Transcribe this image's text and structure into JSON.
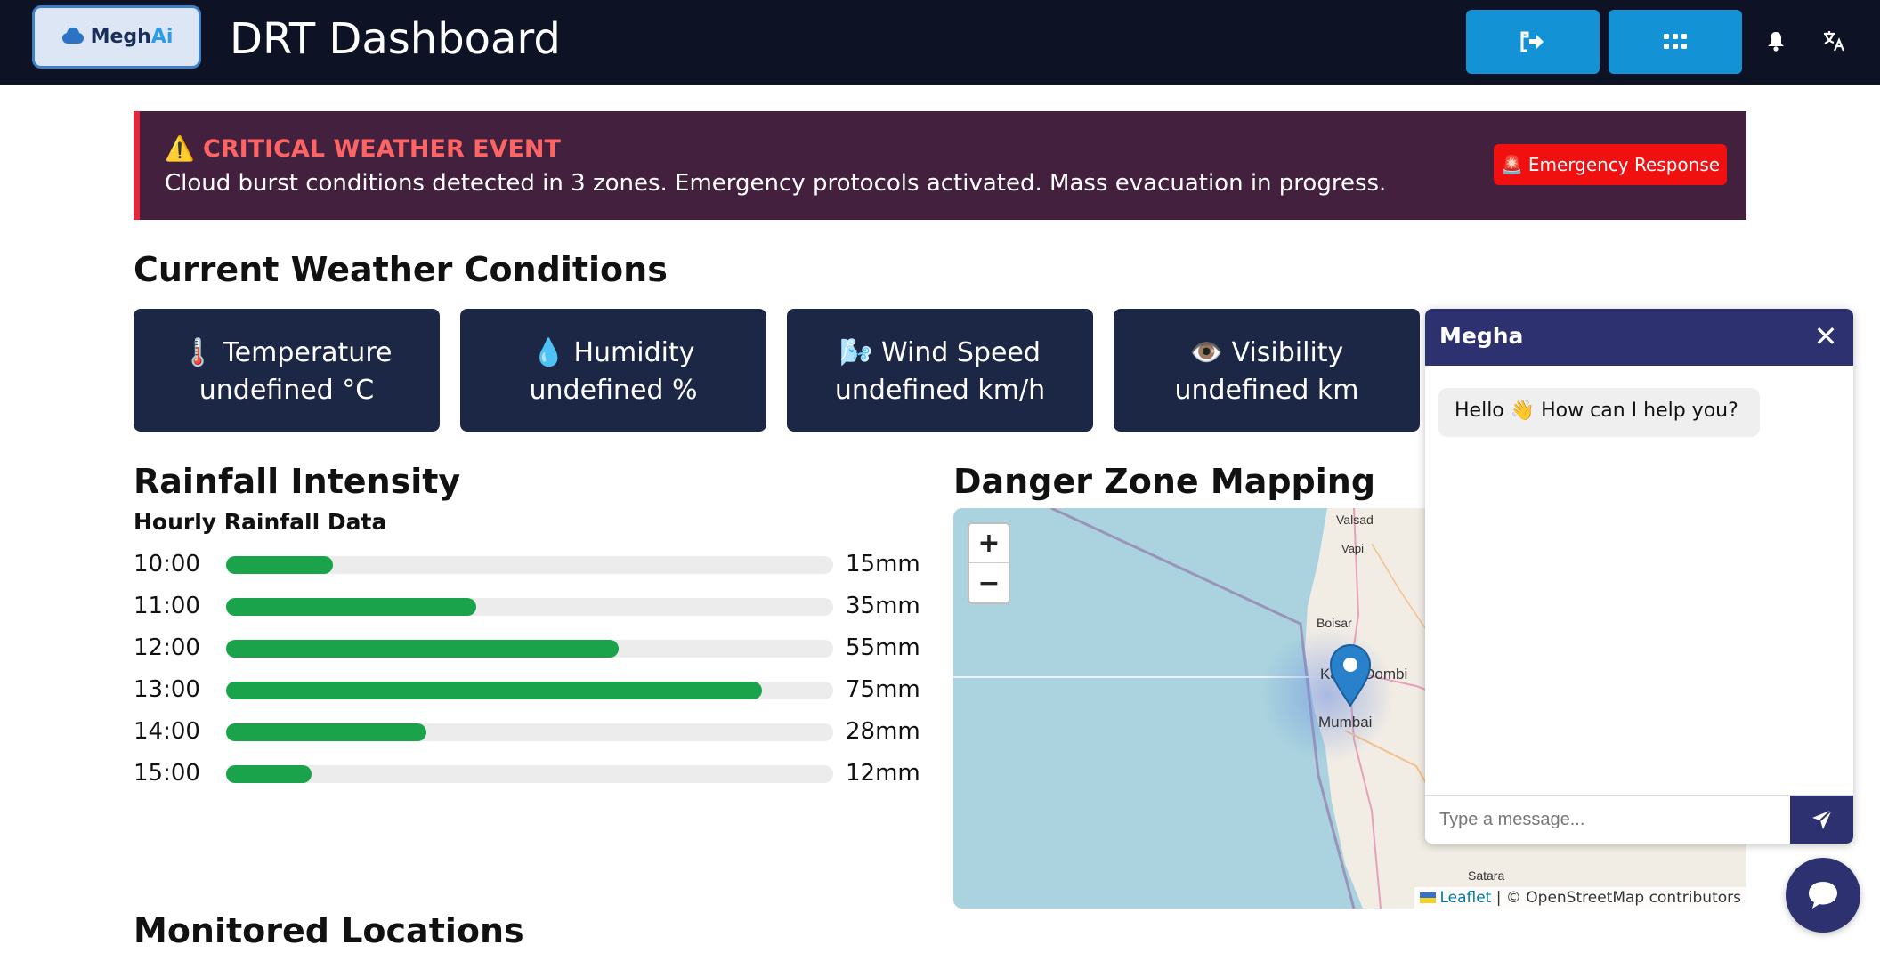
{
  "header": {
    "logo_text": "Megh",
    "logo_accent": "Ai",
    "title": "DRT Dashboard",
    "buttons": [
      {
        "icon": "logout-icon"
      },
      {
        "icon": "apps-grid-icon"
      }
    ],
    "icons": [
      "bell-icon",
      "translate-icon"
    ]
  },
  "alert": {
    "icon": "⚠️",
    "title": "CRITICAL WEATHER EVENT",
    "message": "Cloud burst conditions detected in 3 zones. Emergency protocols activated. Mass evacuation in progress.",
    "button_icon": "🚨",
    "button_label": "Emergency Response"
  },
  "weather": {
    "heading": "Current Weather Conditions",
    "cards": [
      {
        "icon": "🌡️",
        "label": "Temperature",
        "value": "undefined °C"
      },
      {
        "icon": "💧",
        "label": "Humidity",
        "value": "undefined %"
      },
      {
        "icon": "🌬️",
        "label": "Wind Speed",
        "value": "undefined km/h"
      },
      {
        "icon": "👁️",
        "label": "Visibility",
        "value": "undefined km"
      }
    ]
  },
  "rainfall": {
    "heading": "Rainfall Intensity",
    "subheading": "Hourly Rainfall Data",
    "max_mm": 85,
    "rows": [
      {
        "time": "10:00",
        "value": 15,
        "label": "15mm"
      },
      {
        "time": "11:00",
        "value": 35,
        "label": "35mm"
      },
      {
        "time": "12:00",
        "value": 55,
        "label": "55mm"
      },
      {
        "time": "13:00",
        "value": 75,
        "label": "75mm"
      },
      {
        "time": "14:00",
        "value": 28,
        "label": "28mm"
      },
      {
        "time": "15:00",
        "value": 12,
        "label": "12mm"
      }
    ]
  },
  "map": {
    "heading": "Danger Zone Mapping",
    "zoom_in": "+",
    "zoom_out": "−",
    "places": [
      "Valsad",
      "Vapi",
      "Boisar",
      "Ka",
      "n-Dombi",
      "Mumbai",
      "Satara"
    ],
    "attribution_link": "Leaflet",
    "attribution_text": "| © OpenStreetMap contributors"
  },
  "locations": {
    "heading": "Monitored Locations"
  },
  "chat": {
    "title": "Megha",
    "close": "✕",
    "greeting": "Hello 👋 How can I help you?",
    "placeholder": "Type a message..."
  },
  "colors": {
    "header_bg": "#0d1224",
    "accent_blue": "#1492d6",
    "alert_bg": "#44203f",
    "alert_red": "#e3263b",
    "card_bg": "#1c2746",
    "bar_green": "#1aa34a",
    "chat_purple": "#2d3170"
  }
}
